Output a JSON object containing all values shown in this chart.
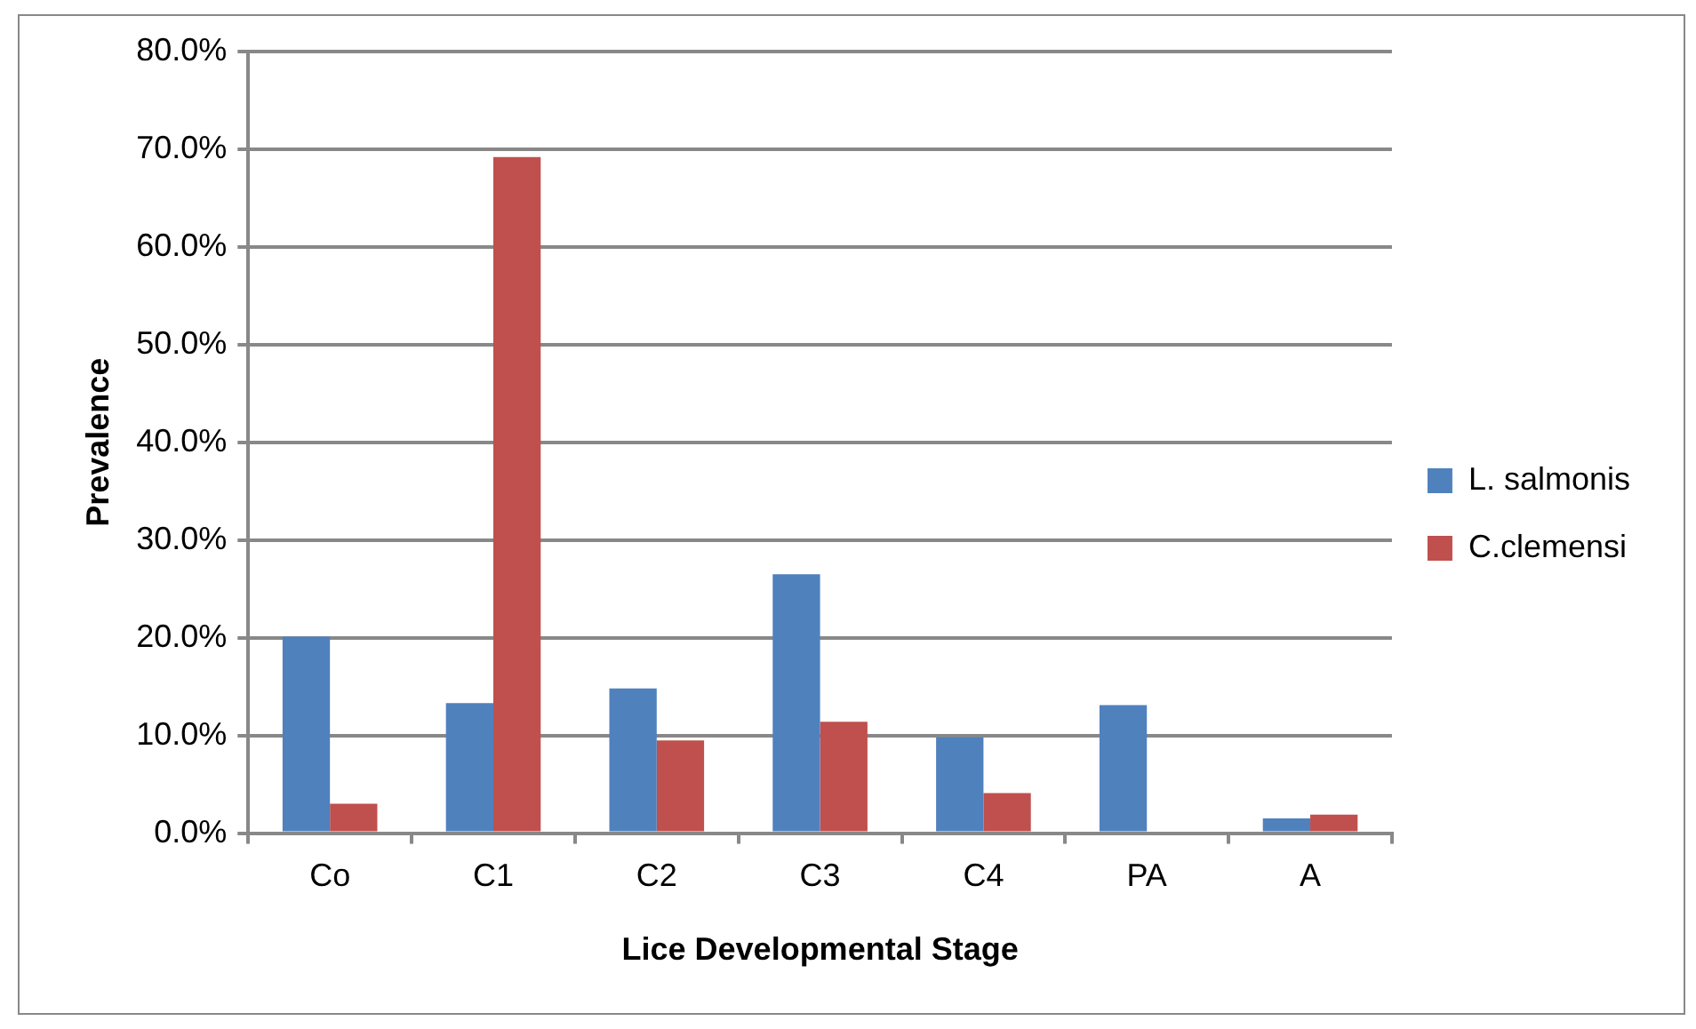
{
  "chart_data": {
    "type": "bar",
    "xlabel": "Lice Developmental Stage",
    "ylabel": "Prevalence",
    "categories": [
      "Co",
      "C1",
      "C2",
      "C3",
      "C4",
      "PA",
      "A"
    ],
    "series": [
      {
        "name": "L. salmonis",
        "color": "#4f81bd",
        "values": [
          20.1,
          13.3,
          14.8,
          26.5,
          9.8,
          13.1,
          1.5
        ]
      },
      {
        "name": "C.clemensi",
        "color": "#c0504d",
        "values": [
          3.0,
          69.2,
          9.5,
          11.4,
          4.1,
          0,
          1.9
        ]
      }
    ],
    "ylim": [
      0,
      80
    ],
    "yticks": [
      {
        "value": 0,
        "label": "0.0%"
      },
      {
        "value": 10,
        "label": "10.0%"
      },
      {
        "value": 20,
        "label": "20.0%"
      },
      {
        "value": 30,
        "label": "30.0%"
      },
      {
        "value": 40,
        "label": "40.0%"
      },
      {
        "value": 50,
        "label": "50.0%"
      },
      {
        "value": 60,
        "label": "60.0%"
      },
      {
        "value": 70,
        "label": "70.0%"
      },
      {
        "value": 80,
        "label": "80.0%"
      }
    ],
    "grid": "y",
    "legend": "right"
  }
}
